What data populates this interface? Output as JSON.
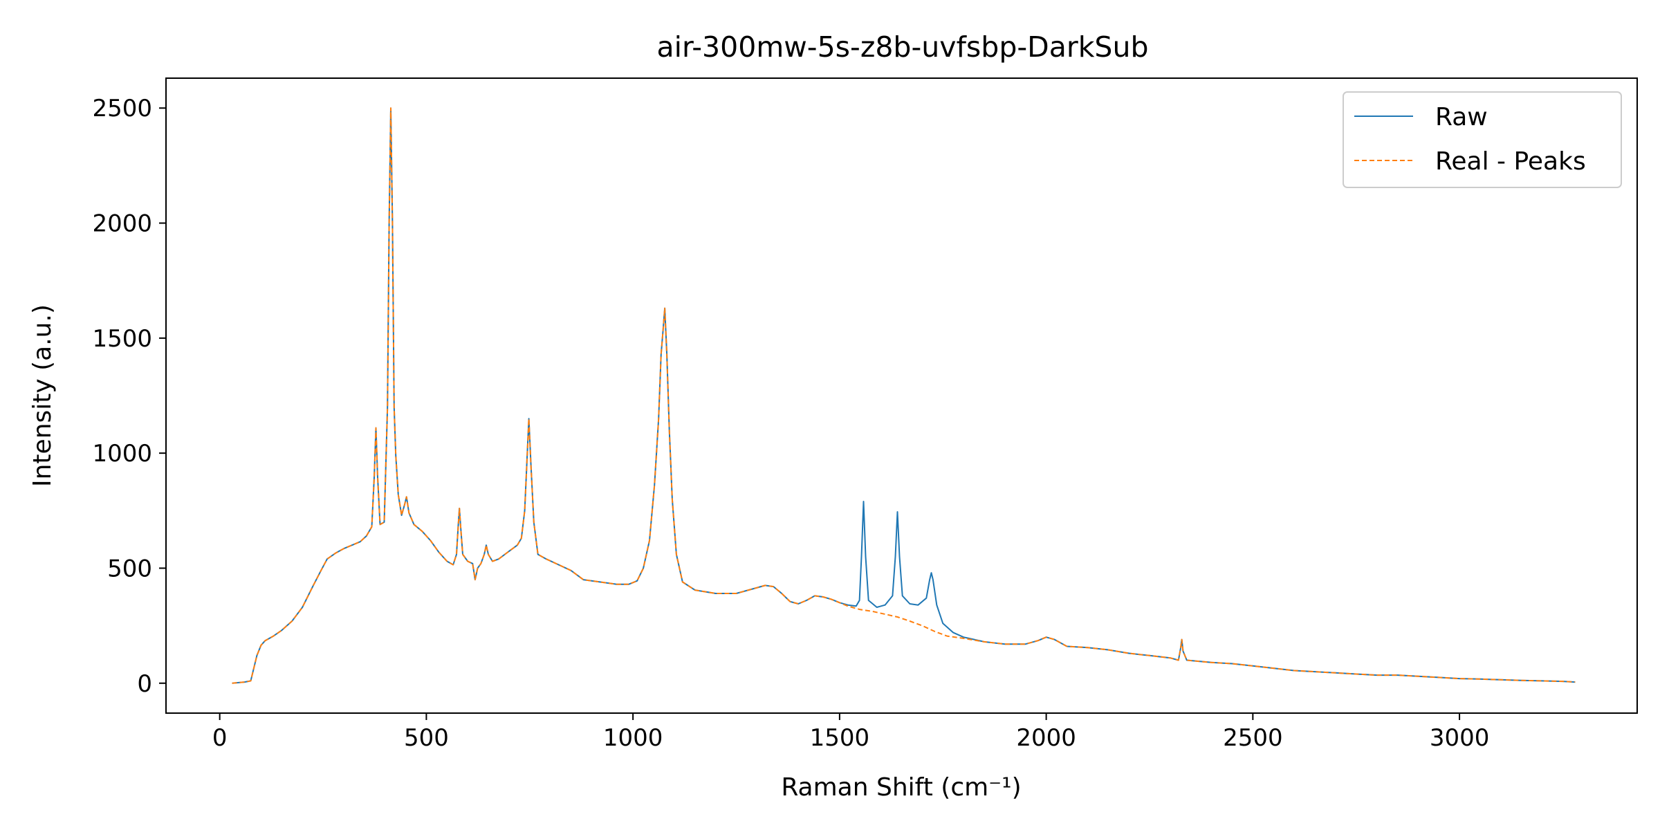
{
  "chart_data": {
    "type": "line",
    "title": "air-300mw-5s-z8b-uvfsbp-DarkSub",
    "xlabel": "Raman Shift (cm⁻¹)",
    "ylabel": "Intensity (a.u.)",
    "xlim": [
      -130,
      3430
    ],
    "ylim": [
      -130,
      2630
    ],
    "xticks": [
      0,
      500,
      1000,
      1500,
      2000,
      2500,
      3000
    ],
    "yticks": [
      0,
      500,
      1000,
      1500,
      2000,
      2500
    ],
    "grid": false,
    "legend_position": "top-right",
    "series": [
      {
        "name": "Raw",
        "color": "#1f77b4",
        "style": "solid",
        "points": [
          [
            30,
            0
          ],
          [
            60,
            5
          ],
          [
            75,
            10
          ],
          [
            90,
            120
          ],
          [
            100,
            165
          ],
          [
            110,
            185
          ],
          [
            130,
            205
          ],
          [
            150,
            230
          ],
          [
            175,
            270
          ],
          [
            200,
            330
          ],
          [
            225,
            420
          ],
          [
            245,
            490
          ],
          [
            260,
            540
          ],
          [
            280,
            565
          ],
          [
            300,
            585
          ],
          [
            320,
            600
          ],
          [
            340,
            615
          ],
          [
            355,
            640
          ],
          [
            368,
            680
          ],
          [
            374,
            900
          ],
          [
            378,
            1110
          ],
          [
            382,
            900
          ],
          [
            388,
            690
          ],
          [
            398,
            700
          ],
          [
            406,
            1200
          ],
          [
            410,
            2000
          ],
          [
            414,
            2500
          ],
          [
            418,
            2000
          ],
          [
            422,
            1200
          ],
          [
            426,
            990
          ],
          [
            432,
            820
          ],
          [
            440,
            730
          ],
          [
            448,
            780
          ],
          [
            452,
            810
          ],
          [
            458,
            740
          ],
          [
            470,
            690
          ],
          [
            490,
            660
          ],
          [
            510,
            620
          ],
          [
            530,
            570
          ],
          [
            550,
            530
          ],
          [
            565,
            515
          ],
          [
            573,
            560
          ],
          [
            577,
            680
          ],
          [
            580,
            760
          ],
          [
            583,
            680
          ],
          [
            588,
            560
          ],
          [
            600,
            530
          ],
          [
            612,
            520
          ],
          [
            618,
            450
          ],
          [
            624,
            500
          ],
          [
            632,
            520
          ],
          [
            640,
            560
          ],
          [
            645,
            600
          ],
          [
            650,
            560
          ],
          [
            660,
            530
          ],
          [
            675,
            540
          ],
          [
            690,
            560
          ],
          [
            705,
            580
          ],
          [
            720,
            600
          ],
          [
            730,
            630
          ],
          [
            738,
            750
          ],
          [
            743,
            950
          ],
          [
            748,
            1150
          ],
          [
            753,
            950
          ],
          [
            760,
            700
          ],
          [
            770,
            560
          ],
          [
            790,
            540
          ],
          [
            820,
            515
          ],
          [
            850,
            490
          ],
          [
            880,
            450
          ],
          [
            920,
            440
          ],
          [
            960,
            430
          ],
          [
            990,
            430
          ],
          [
            1010,
            445
          ],
          [
            1025,
            500
          ],
          [
            1040,
            620
          ],
          [
            1052,
            860
          ],
          [
            1062,
            1150
          ],
          [
            1068,
            1430
          ],
          [
            1073,
            1540
          ],
          [
            1077,
            1630
          ],
          [
            1082,
            1430
          ],
          [
            1088,
            1100
          ],
          [
            1095,
            800
          ],
          [
            1105,
            560
          ],
          [
            1120,
            440
          ],
          [
            1150,
            405
          ],
          [
            1200,
            390
          ],
          [
            1250,
            390
          ],
          [
            1290,
            410
          ],
          [
            1320,
            425
          ],
          [
            1340,
            420
          ],
          [
            1360,
            390
          ],
          [
            1380,
            355
          ],
          [
            1400,
            345
          ],
          [
            1420,
            360
          ],
          [
            1440,
            380
          ],
          [
            1460,
            375
          ],
          [
            1480,
            365
          ],
          [
            1500,
            350
          ],
          [
            1520,
            340
          ],
          [
            1540,
            335
          ],
          [
            1548,
            360
          ],
          [
            1553,
            550
          ],
          [
            1558,
            790
          ],
          [
            1563,
            550
          ],
          [
            1570,
            360
          ],
          [
            1590,
            330
          ],
          [
            1610,
            340
          ],
          [
            1628,
            380
          ],
          [
            1635,
            550
          ],
          [
            1640,
            745
          ],
          [
            1645,
            550
          ],
          [
            1652,
            380
          ],
          [
            1670,
            345
          ],
          [
            1690,
            340
          ],
          [
            1710,
            370
          ],
          [
            1718,
            450
          ],
          [
            1722,
            480
          ],
          [
            1726,
            450
          ],
          [
            1735,
            340
          ],
          [
            1750,
            260
          ],
          [
            1775,
            220
          ],
          [
            1800,
            200
          ],
          [
            1850,
            180
          ],
          [
            1900,
            170
          ],
          [
            1950,
            170
          ],
          [
            1980,
            185
          ],
          [
            2000,
            200
          ],
          [
            2020,
            190
          ],
          [
            2050,
            160
          ],
          [
            2100,
            155
          ],
          [
            2150,
            145
          ],
          [
            2200,
            130
          ],
          [
            2250,
            120
          ],
          [
            2300,
            110
          ],
          [
            2320,
            100
          ],
          [
            2325,
            150
          ],
          [
            2328,
            190
          ],
          [
            2331,
            140
          ],
          [
            2340,
            100
          ],
          [
            2400,
            90
          ],
          [
            2450,
            85
          ],
          [
            2500,
            75
          ],
          [
            2550,
            65
          ],
          [
            2600,
            55
          ],
          [
            2650,
            50
          ],
          [
            2700,
            45
          ],
          [
            2750,
            40
          ],
          [
            2800,
            35
          ],
          [
            2850,
            35
          ],
          [
            2900,
            30
          ],
          [
            2950,
            25
          ],
          [
            3000,
            20
          ],
          [
            3050,
            18
          ],
          [
            3100,
            15
          ],
          [
            3150,
            12
          ],
          [
            3200,
            10
          ],
          [
            3250,
            8
          ],
          [
            3280,
            5
          ]
        ]
      },
      {
        "name": "Real - Peaks",
        "color": "#ff7f0e",
        "style": "dashed",
        "points": [
          [
            30,
            0
          ],
          [
            60,
            5
          ],
          [
            75,
            10
          ],
          [
            90,
            120
          ],
          [
            100,
            165
          ],
          [
            110,
            185
          ],
          [
            130,
            205
          ],
          [
            150,
            230
          ],
          [
            175,
            270
          ],
          [
            200,
            330
          ],
          [
            225,
            420
          ],
          [
            245,
            490
          ],
          [
            260,
            540
          ],
          [
            280,
            565
          ],
          [
            300,
            585
          ],
          [
            320,
            600
          ],
          [
            340,
            615
          ],
          [
            355,
            640
          ],
          [
            368,
            680
          ],
          [
            374,
            900
          ],
          [
            378,
            1110
          ],
          [
            382,
            900
          ],
          [
            388,
            690
          ],
          [
            398,
            700
          ],
          [
            406,
            1200
          ],
          [
            410,
            2000
          ],
          [
            414,
            2500
          ],
          [
            418,
            2000
          ],
          [
            422,
            1200
          ],
          [
            426,
            990
          ],
          [
            432,
            820
          ],
          [
            440,
            730
          ],
          [
            448,
            780
          ],
          [
            452,
            810
          ],
          [
            458,
            740
          ],
          [
            470,
            690
          ],
          [
            490,
            660
          ],
          [
            510,
            620
          ],
          [
            530,
            570
          ],
          [
            550,
            530
          ],
          [
            565,
            515
          ],
          [
            573,
            560
          ],
          [
            577,
            680
          ],
          [
            580,
            760
          ],
          [
            583,
            680
          ],
          [
            588,
            560
          ],
          [
            600,
            530
          ],
          [
            612,
            520
          ],
          [
            618,
            450
          ],
          [
            624,
            500
          ],
          [
            632,
            520
          ],
          [
            640,
            560
          ],
          [
            645,
            600
          ],
          [
            650,
            560
          ],
          [
            660,
            530
          ],
          [
            675,
            540
          ],
          [
            690,
            560
          ],
          [
            705,
            580
          ],
          [
            720,
            600
          ],
          [
            730,
            630
          ],
          [
            738,
            750
          ],
          [
            743,
            950
          ],
          [
            748,
            1150
          ],
          [
            753,
            950
          ],
          [
            760,
            700
          ],
          [
            770,
            560
          ],
          [
            790,
            540
          ],
          [
            820,
            515
          ],
          [
            850,
            490
          ],
          [
            880,
            450
          ],
          [
            920,
            440
          ],
          [
            960,
            430
          ],
          [
            990,
            430
          ],
          [
            1010,
            445
          ],
          [
            1025,
            500
          ],
          [
            1040,
            620
          ],
          [
            1052,
            860
          ],
          [
            1062,
            1150
          ],
          [
            1068,
            1430
          ],
          [
            1073,
            1540
          ],
          [
            1077,
            1630
          ],
          [
            1082,
            1430
          ],
          [
            1088,
            1100
          ],
          [
            1095,
            800
          ],
          [
            1105,
            560
          ],
          [
            1120,
            440
          ],
          [
            1150,
            405
          ],
          [
            1200,
            390
          ],
          [
            1250,
            390
          ],
          [
            1290,
            410
          ],
          [
            1320,
            425
          ],
          [
            1340,
            420
          ],
          [
            1360,
            390
          ],
          [
            1380,
            355
          ],
          [
            1400,
            345
          ],
          [
            1420,
            360
          ],
          [
            1440,
            380
          ],
          [
            1460,
            375
          ],
          [
            1480,
            365
          ],
          [
            1500,
            350
          ],
          [
            1520,
            335
          ],
          [
            1550,
            320
          ],
          [
            1580,
            312
          ],
          [
            1610,
            300
          ],
          [
            1640,
            288
          ],
          [
            1670,
            270
          ],
          [
            1700,
            250
          ],
          [
            1730,
            225
          ],
          [
            1760,
            205
          ],
          [
            1800,
            195
          ],
          [
            1850,
            180
          ],
          [
            1900,
            170
          ],
          [
            1950,
            170
          ],
          [
            1980,
            185
          ],
          [
            2000,
            200
          ],
          [
            2020,
            190
          ],
          [
            2050,
            160
          ],
          [
            2100,
            155
          ],
          [
            2150,
            145
          ],
          [
            2200,
            130
          ],
          [
            2250,
            120
          ],
          [
            2300,
            110
          ],
          [
            2320,
            100
          ],
          [
            2325,
            150
          ],
          [
            2328,
            190
          ],
          [
            2331,
            140
          ],
          [
            2340,
            100
          ],
          [
            2400,
            90
          ],
          [
            2450,
            85
          ],
          [
            2500,
            75
          ],
          [
            2550,
            65
          ],
          [
            2600,
            55
          ],
          [
            2650,
            50
          ],
          [
            2700,
            45
          ],
          [
            2750,
            40
          ],
          [
            2800,
            35
          ],
          [
            2850,
            35
          ],
          [
            2900,
            30
          ],
          [
            2950,
            25
          ],
          [
            3000,
            20
          ],
          [
            3050,
            18
          ],
          [
            3100,
            15
          ],
          [
            3150,
            12
          ],
          [
            3200,
            10
          ],
          [
            3250,
            8
          ],
          [
            3280,
            5
          ]
        ]
      }
    ]
  }
}
